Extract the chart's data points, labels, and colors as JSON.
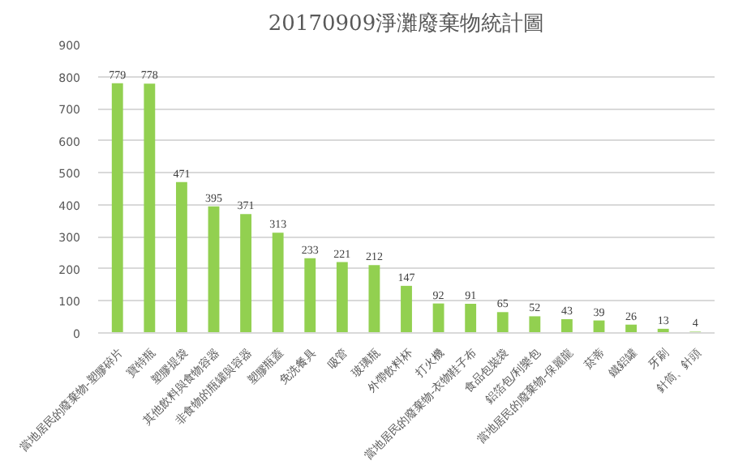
{
  "chart_data": {
    "type": "bar",
    "title": "20170909淨灘廢棄物統計圖",
    "categories": [
      "當地居民的廢棄物-塑膠碎片",
      "寶特瓶",
      "塑膠提袋",
      "其他飲料與食物容器",
      "非食物的瓶罐與容器",
      "塑膠瓶蓋",
      "免洗餐具",
      "吸管",
      "玻璃瓶",
      "外帶飲料杯",
      "打火機",
      "當地居民的廢棄物-衣物鞋子布",
      "食品包裝袋",
      "鋁箔包/利樂包",
      "當地居民的廢棄物-保麗龍",
      "菸蒂",
      "鐵鋁罐",
      "牙刷",
      "針筒、針頭"
    ],
    "values": [
      779,
      778,
      471,
      395,
      371,
      313,
      233,
      221,
      212,
      147,
      92,
      91,
      65,
      52,
      43,
      39,
      26,
      13,
      4
    ],
    "color": "#92d050",
    "ylim": [
      0,
      900
    ],
    "yticks": [
      0,
      100,
      200,
      300,
      400,
      500,
      600,
      700,
      800,
      900
    ],
    "grid": "y",
    "data_labels": true
  }
}
